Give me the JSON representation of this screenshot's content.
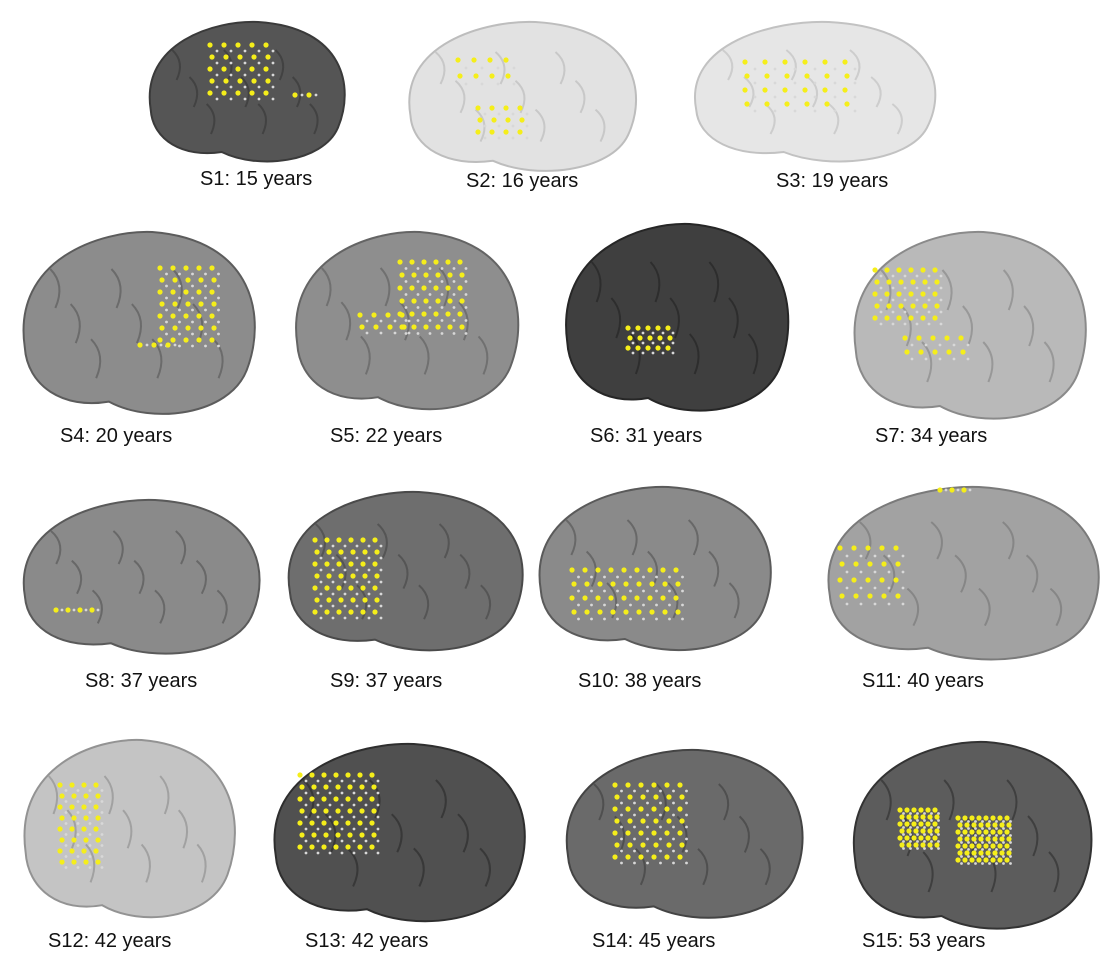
{
  "figure": {
    "panels": [
      {
        "id": "S1",
        "caption": "S1: 15 years"
      },
      {
        "id": "S2",
        "caption": "S2: 16 years"
      },
      {
        "id": "S3",
        "caption": "S3: 19 years"
      },
      {
        "id": "S4",
        "caption": "S4: 20 years"
      },
      {
        "id": "S5",
        "caption": "S5: 22 years"
      },
      {
        "id": "S6",
        "caption": "S6: 31 years"
      },
      {
        "id": "S7",
        "caption": "S7: 34 years"
      },
      {
        "id": "S8",
        "caption": "S8: 37 years"
      },
      {
        "id": "S9",
        "caption": "S9: 37 years"
      },
      {
        "id": "S10",
        "caption": "S10: 38 years"
      },
      {
        "id": "S11",
        "caption": "S11: 40 years"
      },
      {
        "id": "S12",
        "caption": "S12: 42 years"
      },
      {
        "id": "S13",
        "caption": "S13: 42 years"
      },
      {
        "id": "S14",
        "caption": "S14: 45 years"
      },
      {
        "id": "S15",
        "caption": "S15: 53 years"
      }
    ],
    "colors": {
      "electrode_active": "#f5ee1a",
      "electrode_inactive": "#d8d8d8",
      "background": "#ffffff"
    }
  }
}
